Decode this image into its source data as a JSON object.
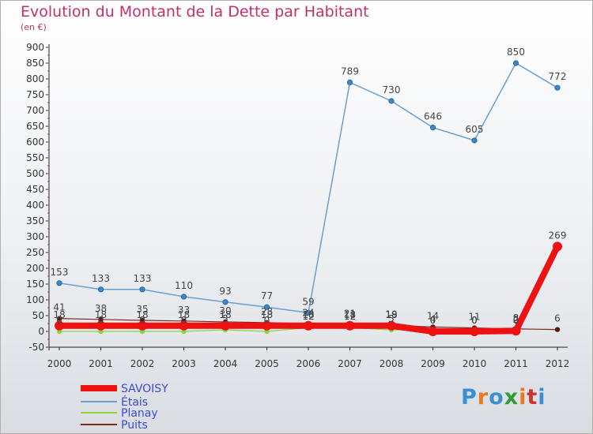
{
  "page": {
    "title": "Evolution du Montant de la Dette par Habitant",
    "unit": "(en €)",
    "logo": {
      "letters": [
        "P",
        "r",
        "o",
        "x",
        "i",
        "t",
        "i"
      ],
      "colors": [
        "#3a8fd0",
        "#e87a1a",
        "#3a8fd0",
        "#2e9a3a",
        "#e87a1a",
        "#d03030",
        "#3a8fd0"
      ]
    }
  },
  "chart_data": {
    "type": "line",
    "title": "Evolution du Montant de la Dette par Habitant",
    "ylabel": "(en €)",
    "xlabel": "",
    "x": [
      "2000",
      "2001",
      "2002",
      "2003",
      "2004",
      "2005",
      "2006",
      "2007",
      "2008",
      "2009",
      "2010",
      "2011",
      "2012"
    ],
    "ylim": [
      -50,
      900
    ],
    "yticks": [
      -50,
      0,
      50,
      100,
      150,
      200,
      250,
      300,
      350,
      400,
      450,
      500,
      550,
      600,
      650,
      700,
      750,
      800,
      850,
      900
    ],
    "grid": false,
    "legend": "bottom-left",
    "series": [
      {
        "name": "SAVOISY",
        "color": "#ee1111",
        "values": [
          18,
          18,
          18,
          18,
          18,
          18,
          18,
          18,
          18,
          0,
          0,
          2,
          269
        ],
        "labels": [
          "18",
          "18",
          "18",
          "18",
          "18",
          "18",
          "18",
          "18",
          "18",
          "0",
          "0",
          "2",
          "269"
        ]
      },
      {
        "name": "Étais",
        "color": "#6aa0d0",
        "values": [
          153,
          133,
          133,
          110,
          93,
          77,
          59,
          789,
          730,
          646,
          605,
          850,
          772
        ],
        "labels": [
          "153",
          "133",
          "133",
          "110",
          "93",
          "77",
          "59",
          "789",
          "730",
          "646",
          "605",
          "850",
          "772"
        ]
      },
      {
        "name": "Planay",
        "color": "#8fd23a",
        "values": [
          0,
          0,
          0,
          0,
          5,
          0,
          12,
          12,
          5,
          4,
          0,
          0,
          null
        ],
        "labels": [
          "0",
          "0",
          "0",
          "0",
          "5",
          "0",
          "12",
          "12",
          "5",
          "4",
          "0",
          "0",
          ""
        ]
      },
      {
        "name": "Puits",
        "color": "#7a2a1e",
        "values": [
          41,
          38,
          35,
          33,
          30,
          28,
          24,
          21,
          19,
          14,
          11,
          8,
          6
        ],
        "labels": [
          "41",
          "38",
          "35",
          "33",
          "30",
          "28",
          "24",
          "21",
          "19",
          "14",
          "11",
          "8",
          "6"
        ]
      }
    ]
  }
}
